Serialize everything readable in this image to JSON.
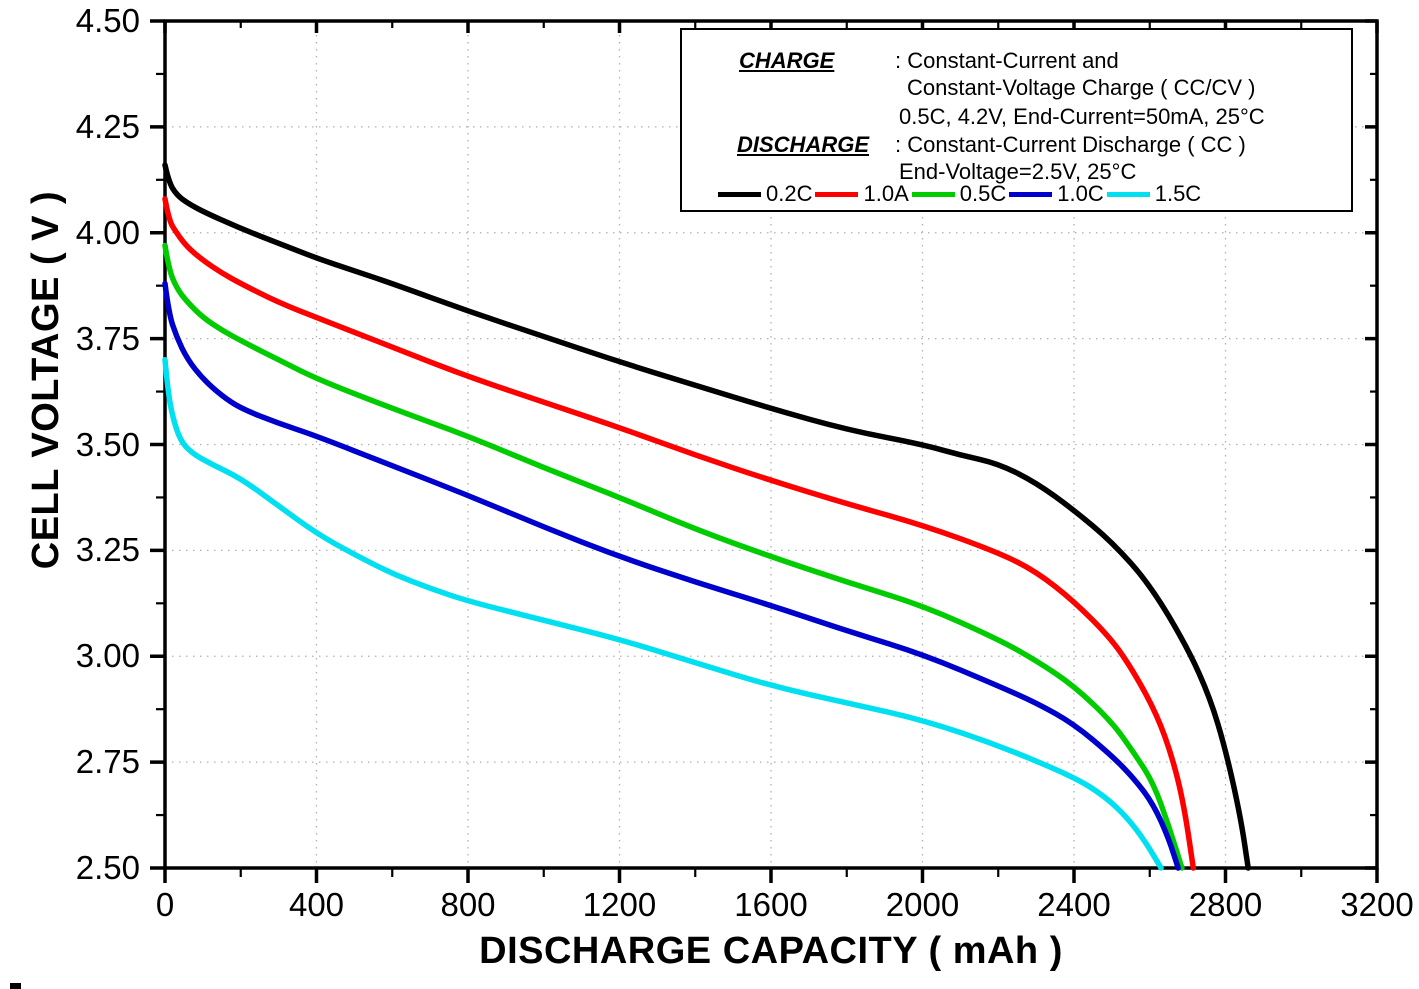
{
  "chart_data": {
    "type": "line",
    "title": "",
    "xlabel": "DISCHARGE CAPACITY ( mAh )",
    "ylabel": "CELL VOLTAGE ( V )",
    "xlim": [
      0,
      3200
    ],
    "ylim": [
      2.5,
      4.5
    ],
    "x_major_ticks": [
      0,
      400,
      800,
      1200,
      1600,
      2000,
      2400,
      2800,
      3200
    ],
    "x_tick_labels": [
      "0",
      "400",
      "800",
      "1200",
      "1600",
      "2000",
      "2400",
      "2800",
      "3200"
    ],
    "x_minor_step": 200,
    "y_major_ticks": [
      2.5,
      2.75,
      3.0,
      3.25,
      3.5,
      3.75,
      4.0,
      4.25,
      4.5
    ],
    "y_tick_labels": [
      "2.50",
      "2.75",
      "3.00",
      "3.25",
      "3.50",
      "3.75",
      "4.00",
      "4.25",
      "4.50"
    ],
    "y_minor_step": 0.125,
    "grid": "dotted gray at major ticks",
    "legend_position": "top-right boxed",
    "annotation": {
      "charge_label": "CHARGE",
      "charge_line1": ": Constant-Current and",
      "charge_line2": "Constant-Voltage Charge ( CC/CV )",
      "charge_line3": "0.5C, 4.2V, End-Current=50mA, 25°C",
      "discharge_label": "DISCHARGE",
      "discharge_line1": ": Constant-Current Discharge ( CC )",
      "discharge_line2": "End-Voltage=2.5V, 25°C"
    },
    "series": [
      {
        "name": "0.2C",
        "color": "#000000",
        "points": [
          [
            0,
            4.16
          ],
          [
            10,
            4.12
          ],
          [
            30,
            4.09
          ],
          [
            60,
            4.07
          ],
          [
            100,
            4.05
          ],
          [
            200,
            4.01
          ],
          [
            300,
            3.975
          ],
          [
            400,
            3.94
          ],
          [
            500,
            3.91
          ],
          [
            600,
            3.88
          ],
          [
            800,
            3.815
          ],
          [
            1000,
            3.755
          ],
          [
            1200,
            3.695
          ],
          [
            1400,
            3.64
          ],
          [
            1600,
            3.585
          ],
          [
            1800,
            3.535
          ],
          [
            2000,
            3.5
          ],
          [
            2100,
            3.475
          ],
          [
            2200,
            3.455
          ],
          [
            2300,
            3.41
          ],
          [
            2400,
            3.345
          ],
          [
            2500,
            3.27
          ],
          [
            2600,
            3.17
          ],
          [
            2700,
            3.02
          ],
          [
            2760,
            2.9
          ],
          [
            2800,
            2.78
          ],
          [
            2840,
            2.62
          ],
          [
            2860,
            2.5
          ]
        ]
      },
      {
        "name": "1.0A",
        "color": "#ff0000",
        "points": [
          [
            0,
            4.08
          ],
          [
            10,
            4.03
          ],
          [
            30,
            4.0
          ],
          [
            60,
            3.965
          ],
          [
            100,
            3.935
          ],
          [
            150,
            3.905
          ],
          [
            200,
            3.88
          ],
          [
            300,
            3.835
          ],
          [
            400,
            3.8
          ],
          [
            600,
            3.73
          ],
          [
            800,
            3.66
          ],
          [
            1000,
            3.6
          ],
          [
            1200,
            3.54
          ],
          [
            1400,
            3.475
          ],
          [
            1600,
            3.415
          ],
          [
            1800,
            3.36
          ],
          [
            2000,
            3.31
          ],
          [
            2200,
            3.245
          ],
          [
            2300,
            3.2
          ],
          [
            2400,
            3.13
          ],
          [
            2500,
            3.04
          ],
          [
            2560,
            2.96
          ],
          [
            2620,
            2.86
          ],
          [
            2660,
            2.76
          ],
          [
            2690,
            2.65
          ],
          [
            2715,
            2.5
          ]
        ]
      },
      {
        "name": "0.5C",
        "color": "#00cc00",
        "points": [
          [
            0,
            3.97
          ],
          [
            10,
            3.915
          ],
          [
            30,
            3.87
          ],
          [
            60,
            3.835
          ],
          [
            100,
            3.8
          ],
          [
            150,
            3.77
          ],
          [
            200,
            3.745
          ],
          [
            300,
            3.7
          ],
          [
            400,
            3.655
          ],
          [
            600,
            3.585
          ],
          [
            800,
            3.52
          ],
          [
            1000,
            3.445
          ],
          [
            1200,
            3.375
          ],
          [
            1400,
            3.3
          ],
          [
            1600,
            3.235
          ],
          [
            1800,
            3.175
          ],
          [
            2000,
            3.12
          ],
          [
            2200,
            3.04
          ],
          [
            2300,
            2.99
          ],
          [
            2400,
            2.93
          ],
          [
            2500,
            2.845
          ],
          [
            2560,
            2.77
          ],
          [
            2610,
            2.7
          ],
          [
            2650,
            2.6
          ],
          [
            2685,
            2.5
          ]
        ]
      },
      {
        "name": "1.0C",
        "color": "#0000cc",
        "points": [
          [
            0,
            3.88
          ],
          [
            10,
            3.81
          ],
          [
            30,
            3.755
          ],
          [
            60,
            3.7
          ],
          [
            100,
            3.655
          ],
          [
            150,
            3.615
          ],
          [
            200,
            3.585
          ],
          [
            300,
            3.55
          ],
          [
            400,
            3.52
          ],
          [
            600,
            3.45
          ],
          [
            800,
            3.38
          ],
          [
            1000,
            3.305
          ],
          [
            1200,
            3.235
          ],
          [
            1400,
            3.175
          ],
          [
            1600,
            3.12
          ],
          [
            1800,
            3.06
          ],
          [
            2000,
            3.005
          ],
          [
            2200,
            2.93
          ],
          [
            2300,
            2.89
          ],
          [
            2400,
            2.84
          ],
          [
            2500,
            2.765
          ],
          [
            2560,
            2.71
          ],
          [
            2610,
            2.65
          ],
          [
            2650,
            2.57
          ],
          [
            2675,
            2.5
          ]
        ]
      },
      {
        "name": "1.5C",
        "color": "#00e0f0",
        "points": [
          [
            0,
            3.7
          ],
          [
            8,
            3.625
          ],
          [
            20,
            3.565
          ],
          [
            40,
            3.51
          ],
          [
            70,
            3.48
          ],
          [
            120,
            3.455
          ],
          [
            200,
            3.42
          ],
          [
            300,
            3.355
          ],
          [
            400,
            3.29
          ],
          [
            500,
            3.24
          ],
          [
            600,
            3.195
          ],
          [
            700,
            3.16
          ],
          [
            800,
            3.13
          ],
          [
            1000,
            3.085
          ],
          [
            1200,
            3.04
          ],
          [
            1400,
            2.985
          ],
          [
            1600,
            2.93
          ],
          [
            1800,
            2.89
          ],
          [
            2000,
            2.85
          ],
          [
            2200,
            2.79
          ],
          [
            2400,
            2.715
          ],
          [
            2480,
            2.67
          ],
          [
            2540,
            2.62
          ],
          [
            2590,
            2.56
          ],
          [
            2630,
            2.5
          ]
        ]
      }
    ]
  }
}
